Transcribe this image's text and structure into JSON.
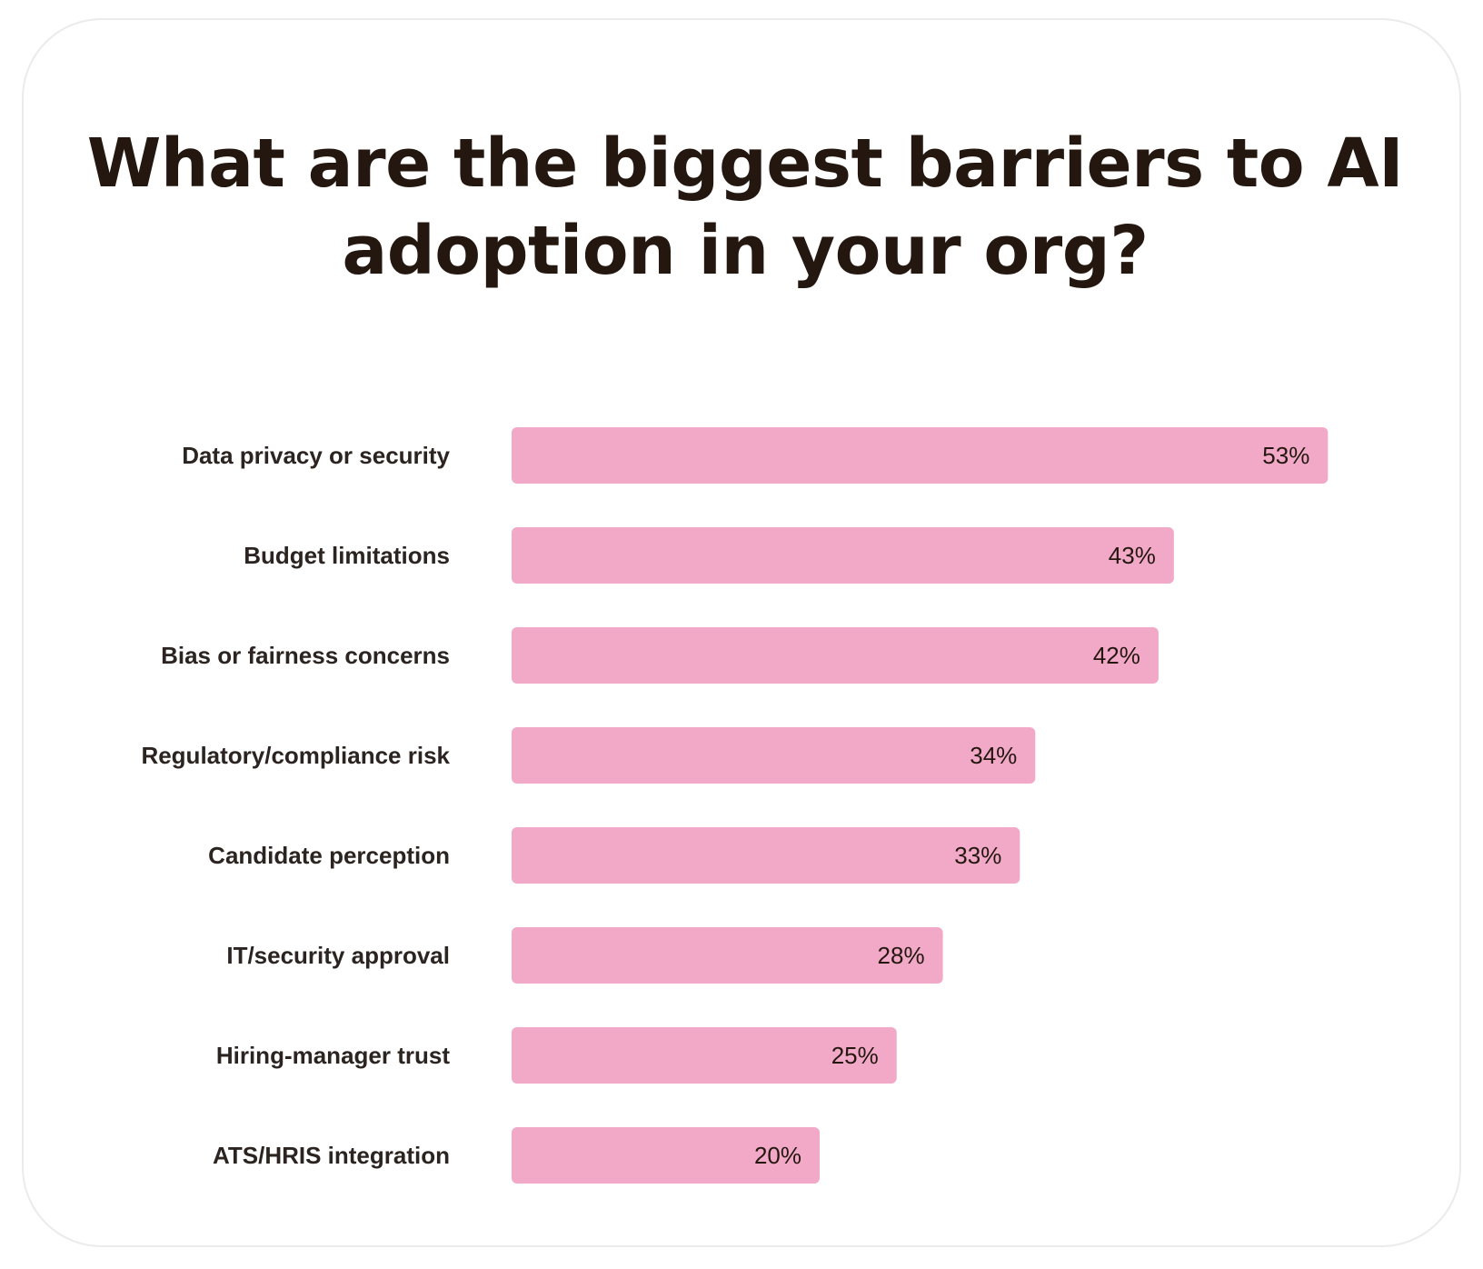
{
  "chart_data": {
    "type": "bar",
    "orientation": "horizontal",
    "title": "What are the biggest barriers to AI adoption in your org?",
    "categories": [
      "Data privacy or security",
      "Budget limitations",
      "Bias or fairness concerns",
      "Regulatory/compliance risk",
      "Candidate perception",
      "IT/security approval",
      "Hiring-manager trust",
      "ATS/HRIS integration"
    ],
    "values": [
      53,
      43,
      42,
      34,
      33,
      28,
      25,
      20
    ],
    "value_labels": [
      "53%",
      "43%",
      "42%",
      "34%",
      "33%",
      "28%",
      "25%",
      "20%"
    ],
    "unit": "%",
    "bar_color": "#f2a9c7",
    "text_color": "#24170f",
    "grid": false,
    "legend": "none"
  }
}
